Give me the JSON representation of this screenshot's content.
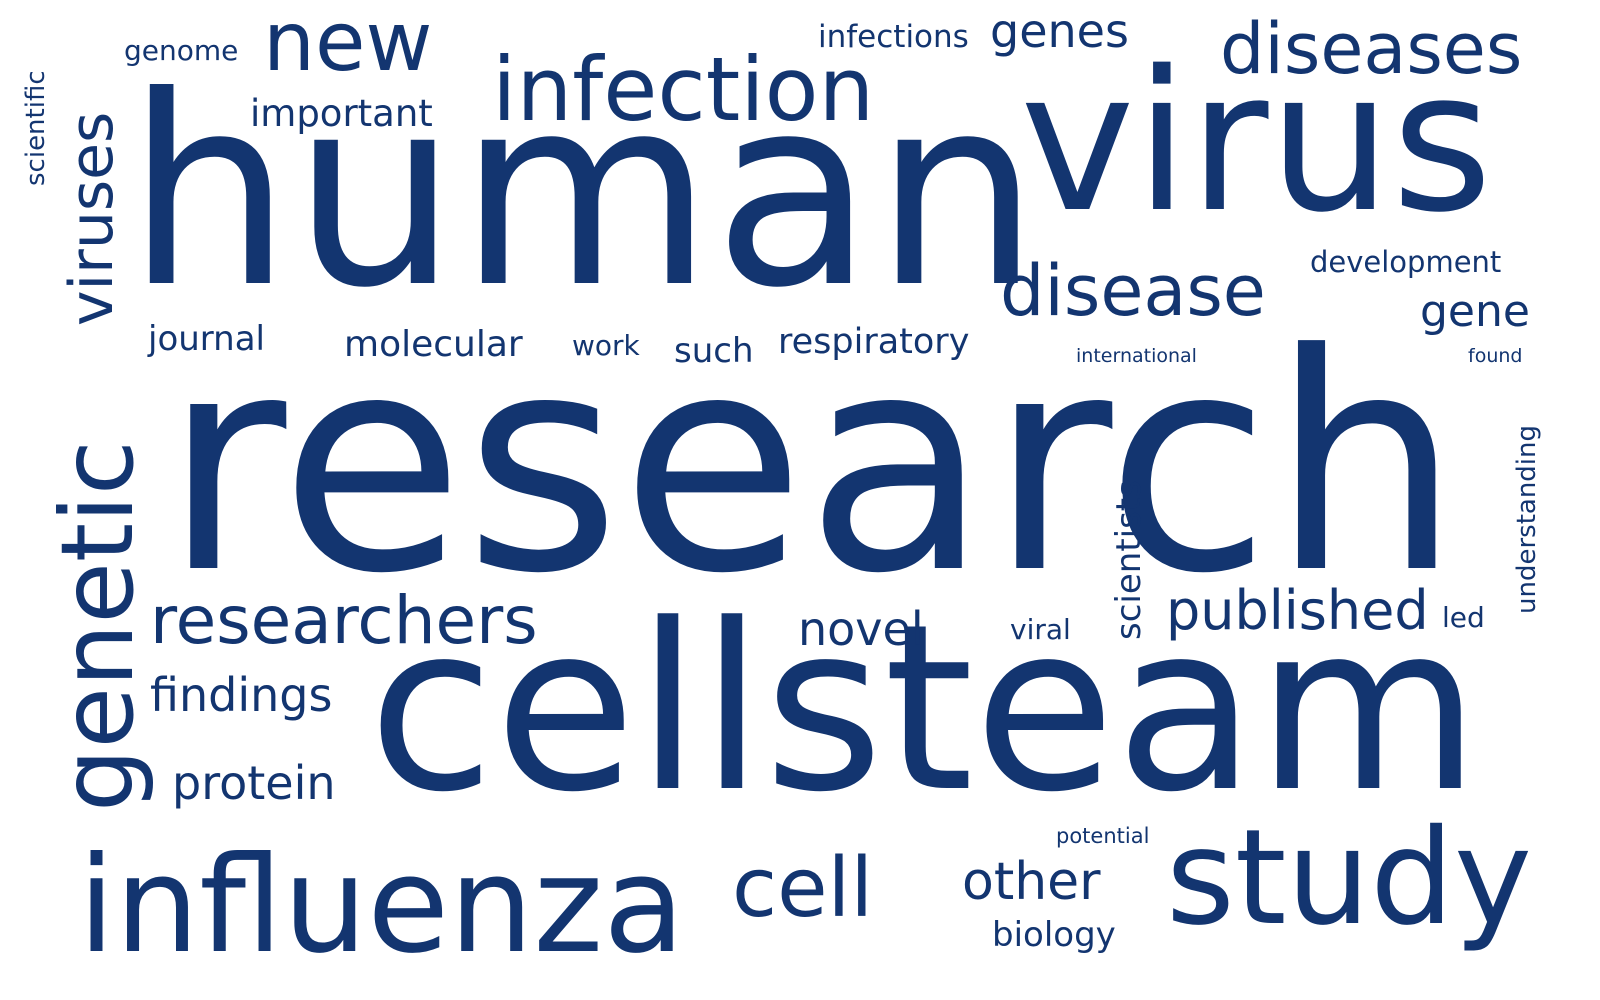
{
  "colors": {
    "background": "#ffffff",
    "word": "#133570"
  },
  "words": [
    {
      "text": "research"
    },
    {
      "text": "human"
    },
    {
      "text": "virus"
    },
    {
      "text": "cellsteam"
    },
    {
      "text": "infection"
    },
    {
      "text": "new"
    },
    {
      "text": "diseases"
    },
    {
      "text": "genes"
    },
    {
      "text": "infections"
    },
    {
      "text": "genome"
    },
    {
      "text": "important"
    },
    {
      "text": "scientific"
    },
    {
      "text": "viruses"
    },
    {
      "text": "disease"
    },
    {
      "text": "development"
    },
    {
      "text": "gene"
    },
    {
      "text": "journal"
    },
    {
      "text": "molecular"
    },
    {
      "text": "work"
    },
    {
      "text": "such"
    },
    {
      "text": "respiratory"
    },
    {
      "text": "international"
    },
    {
      "text": "found"
    },
    {
      "text": "genetic"
    },
    {
      "text": "researchers"
    },
    {
      "text": "novel"
    },
    {
      "text": "viral"
    },
    {
      "text": "scientists"
    },
    {
      "text": "published"
    },
    {
      "text": "led"
    },
    {
      "text": "understanding"
    },
    {
      "text": "findings"
    },
    {
      "text": "protein"
    },
    {
      "text": "influenza"
    },
    {
      "text": "cell"
    },
    {
      "text": "other"
    },
    {
      "text": "biology"
    },
    {
      "text": "potential"
    },
    {
      "text": "study"
    }
  ]
}
